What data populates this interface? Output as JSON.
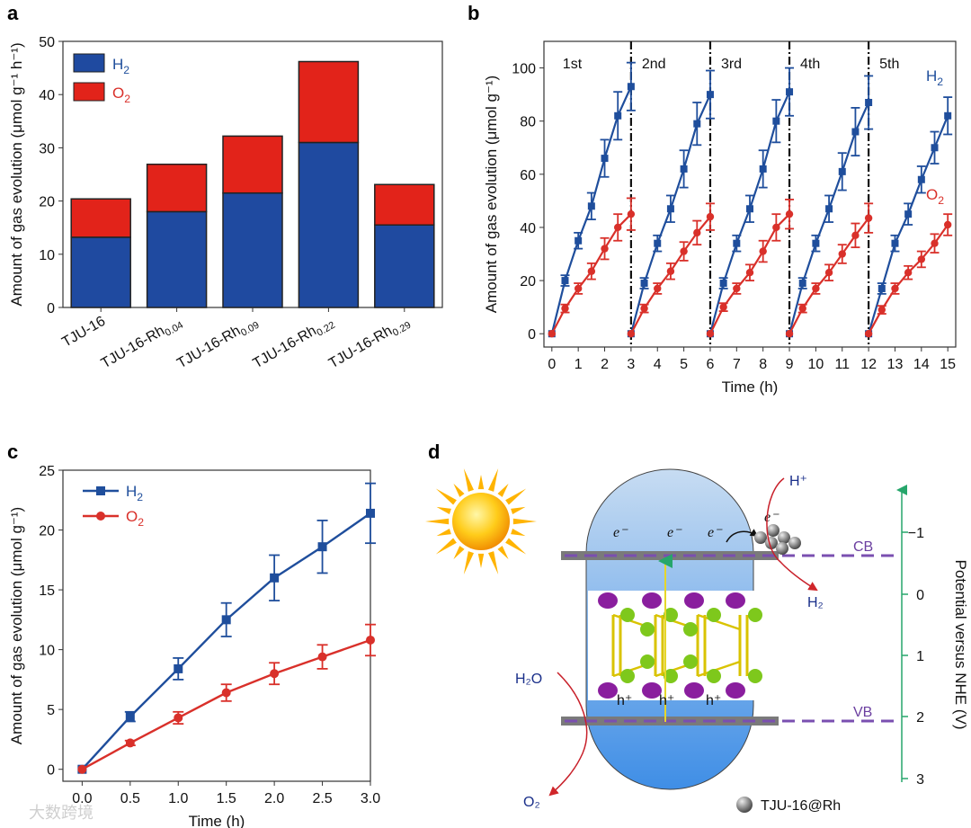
{
  "colors": {
    "h2": "#1f4e9c",
    "o2": "#d9302a",
    "bar_h2": "#1f4aa0",
    "bar_o2": "#e2231a",
    "nhe_axis": "#26a66b",
    "band": "#6b3fa0"
  },
  "chart_data": [
    {
      "panel": "a",
      "type": "bar",
      "stacked": true,
      "categories": [
        "TJU-16",
        "TJU-16-Rh0.04",
        "TJU-16-Rh0.09",
        "TJU-16-Rh0.22",
        "TJU-16-Rh0.29"
      ],
      "category_main": [
        "TJU-16",
        "TJU-16-Rh",
        "TJU-16-Rh",
        "TJU-16-Rh",
        "TJU-16-Rh"
      ],
      "category_sub": [
        "",
        "0.04",
        "0.09",
        "0.22",
        "0.29"
      ],
      "series": [
        {
          "name": "H2",
          "values": [
            13.2,
            18.0,
            21.5,
            31.0,
            15.5
          ]
        },
        {
          "name": "O2",
          "values": [
            7.2,
            8.9,
            10.7,
            15.2,
            7.6
          ]
        }
      ],
      "legend_labels": [
        "H",
        "O"
      ],
      "legend_subs": [
        "2",
        "2"
      ],
      "ylabel": "Amount of gas evolution (μmol g⁻¹ h⁻¹)",
      "ylim": [
        0,
        50
      ],
      "yticks": [
        0,
        10,
        20,
        30,
        40,
        50
      ],
      "legend": "top-left"
    },
    {
      "panel": "b",
      "type": "line",
      "xlabel": "Time (h)",
      "ylabel": "Amount of gas evolution (μmol g⁻¹)",
      "xlim": [
        -0.3,
        15.3
      ],
      "ylim": [
        -5,
        110
      ],
      "xticks": [
        0,
        1,
        2,
        3,
        4,
        5,
        6,
        7,
        8,
        9,
        10,
        11,
        12,
        13,
        14,
        15
      ],
      "yticks": [
        0,
        20,
        40,
        60,
        80,
        100
      ],
      "cycle_times": [
        3,
        6,
        9,
        12
      ],
      "cycle_labels": [
        "1st",
        "2nd",
        "3rd",
        "4th",
        "5th"
      ],
      "cycle_label_x": [
        0,
        3,
        6,
        9,
        12
      ],
      "series": [
        {
          "name": "H2",
          "label": "H",
          "sub": "2",
          "cycles": [
            {
              "x": [
                0,
                0.5,
                1,
                1.5,
                2,
                2.5,
                3
              ],
              "y": [
                0,
                20,
                35,
                48,
                66,
                82,
                93
              ],
              "err": [
                0,
                2,
                3,
                5,
                7,
                9,
                9
              ]
            },
            {
              "x": [
                3,
                3.5,
                4,
                4.5,
                5,
                5.5,
                6
              ],
              "y": [
                0,
                19,
                34,
                47,
                62,
                79,
                90
              ],
              "err": [
                0,
                2,
                3,
                5,
                7,
                8,
                9
              ]
            },
            {
              "x": [
                6,
                6.5,
                7,
                7.5,
                8,
                8.5,
                9
              ],
              "y": [
                0,
                19,
                34,
                47,
                62,
                80,
                91
              ],
              "err": [
                0,
                2,
                3,
                5,
                7,
                8,
                9
              ]
            },
            {
              "x": [
                9,
                9.5,
                10,
                10.5,
                11,
                11.5,
                12
              ],
              "y": [
                0,
                19,
                34,
                47,
                61,
                76,
                87
              ],
              "err": [
                0,
                2,
                3,
                5,
                7,
                9,
                10
              ]
            },
            {
              "x": [
                12,
                12.5,
                13,
                13.5,
                14,
                14.5,
                15
              ],
              "y": [
                0,
                17,
                34,
                45,
                58,
                70,
                82
              ],
              "err": [
                0,
                2,
                3,
                4,
                5,
                6,
                7
              ]
            }
          ]
        },
        {
          "name": "O2",
          "label": "O",
          "sub": "2",
          "cycles": [
            {
              "x": [
                0,
                0.5,
                1,
                1.5,
                2,
                2.5,
                3
              ],
              "y": [
                0,
                9.5,
                17,
                23.5,
                32,
                40,
                45
              ],
              "err": [
                0,
                1.5,
                2,
                3,
                4,
                5,
                6
              ]
            },
            {
              "x": [
                3,
                3.5,
                4,
                4.5,
                5,
                5.5,
                6
              ],
              "y": [
                0,
                9.5,
                17,
                23.5,
                31,
                38,
                44
              ],
              "err": [
                0,
                1.5,
                2,
                3,
                3.5,
                4.5,
                5
              ]
            },
            {
              "x": [
                6,
                6.5,
                7,
                7.5,
                8,
                8.5,
                9
              ],
              "y": [
                0,
                10,
                17,
                23,
                31,
                40,
                45
              ],
              "err": [
                0,
                1.5,
                2,
                3,
                4,
                5,
                5.5
              ]
            },
            {
              "x": [
                9,
                9.5,
                10,
                10.5,
                11,
                11.5,
                12
              ],
              "y": [
                0,
                9.5,
                17,
                23,
                30,
                37,
                43.5
              ],
              "err": [
                0,
                1.5,
                2,
                3,
                3.5,
                4.5,
                5.5
              ]
            },
            {
              "x": [
                12,
                12.5,
                13,
                13.5,
                14,
                14.5,
                15
              ],
              "y": [
                0,
                9,
                17,
                23,
                28,
                34,
                41
              ],
              "err": [
                0,
                1.5,
                2,
                2.5,
                3,
                3.5,
                4
              ]
            }
          ]
        }
      ]
    },
    {
      "panel": "c",
      "type": "line",
      "xlabel": "Time (h)",
      "ylabel": "Amount of gas evolution (μmol g⁻¹)",
      "xlim": [
        -0.2,
        3.0
      ],
      "ylim": [
        -1,
        25
      ],
      "xticks": [
        0.0,
        0.5,
        1.0,
        1.5,
        2.0,
        2.5,
        3.0
      ],
      "yticks": [
        0,
        5,
        10,
        15,
        20,
        25
      ],
      "legend": "top-left",
      "x": [
        0,
        0.5,
        1.0,
        1.5,
        2.0,
        2.5,
        3.0
      ],
      "series": [
        {
          "name": "H2",
          "label": "H",
          "sub": "2",
          "values": [
            0,
            4.4,
            8.4,
            12.5,
            16.0,
            18.6,
            21.4
          ],
          "err": [
            0,
            0.4,
            0.9,
            1.4,
            1.9,
            2.2,
            2.5
          ]
        },
        {
          "name": "O2",
          "label": "O",
          "sub": "2",
          "values": [
            0,
            2.2,
            4.3,
            6.4,
            8.0,
            9.4,
            10.8
          ],
          "err": [
            0,
            0.2,
            0.5,
            0.7,
            0.9,
            1.0,
            1.3
          ]
        }
      ]
    }
  ],
  "panels": {
    "a": "a",
    "b": "b",
    "c": "c",
    "d": "d"
  },
  "schematic": {
    "electrons": [
      "e⁻",
      "e⁻",
      "e⁻",
      "e⁻"
    ],
    "holes": [
      "h⁺",
      "h⁺",
      "h⁺"
    ],
    "h_plus": "H⁺",
    "cb": "CB",
    "vb": "VB",
    "h2o": "H₂O",
    "h2": "H₂",
    "o2": "O₂",
    "legend": "TJU-16@Rh",
    "potential_label": "Potential versus NHE (V)",
    "potential_ticks": [
      "−1",
      "0",
      "1",
      "2",
      "3"
    ]
  },
  "watermark": "大数跨境"
}
